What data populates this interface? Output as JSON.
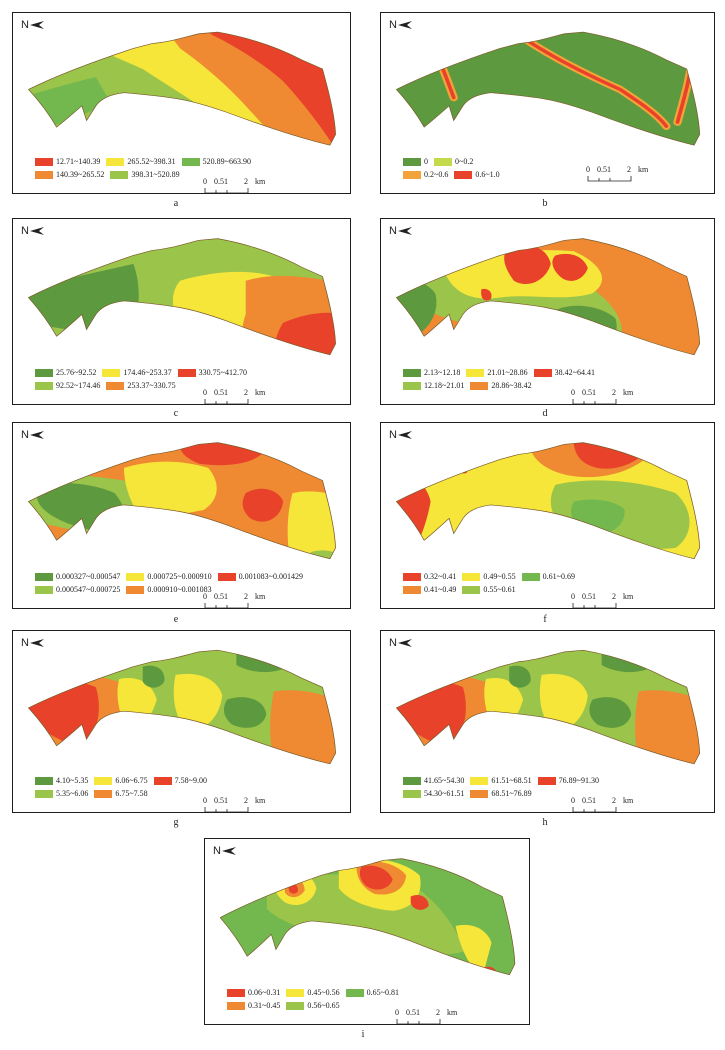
{
  "palette": {
    "dark_green": "#5d9a3f",
    "light_green": "#9bc44a",
    "yellow": "#f6e63a",
    "orange": "#ef8a33",
    "red": "#e8432a"
  },
  "north_label": "N",
  "scale": {
    "ticks": [
      "0",
      "0.5",
      "1",
      "2"
    ],
    "unit": "km"
  },
  "panels": [
    {
      "id": "a",
      "caption": "a",
      "legend": [
        {
          "label": "12.71~140.39",
          "color": "#e8432a"
        },
        {
          "label": "265.52~398.31",
          "color": "#f6e63a"
        },
        {
          "label": "520.89~663.90",
          "color": "#72b84e"
        },
        {
          "label": "140.39~265.52",
          "color": "#ef8a33"
        },
        {
          "label": "398.31~520.89",
          "color": "#9bc44a"
        }
      ]
    },
    {
      "id": "b",
      "caption": "b",
      "legend": [
        {
          "label": "0",
          "color": "#5d9a3f"
        },
        {
          "label": "0~0.2",
          "color": "#c4da4a"
        },
        {
          "label": "0.2~0.6",
          "color": "#f2a33a"
        },
        {
          "label": "0.6~1.0",
          "color": "#e8432a"
        }
      ]
    },
    {
      "id": "c",
      "caption": "c",
      "legend": [
        {
          "label": "25.76~92.52",
          "color": "#5d9a3f"
        },
        {
          "label": "174.46~253.37",
          "color": "#f6e63a"
        },
        {
          "label": "330.75~412.70",
          "color": "#e8432a"
        },
        {
          "label": "92.52~174.46",
          "color": "#9bc44a"
        },
        {
          "label": "253.37~330.75",
          "color": "#ef8a33"
        }
      ]
    },
    {
      "id": "d",
      "caption": "d",
      "legend": [
        {
          "label": "2.13~12.18",
          "color": "#5d9a3f"
        },
        {
          "label": "21.01~28.86",
          "color": "#f6e63a"
        },
        {
          "label": "38.42~64.41",
          "color": "#e8432a"
        },
        {
          "label": "12.18~21.01",
          "color": "#9bc44a"
        },
        {
          "label": "28.86~38.42",
          "color": "#ef8a33"
        }
      ]
    },
    {
      "id": "e",
      "caption": "e",
      "legend": [
        {
          "label": "0.000327~0.000547",
          "color": "#5d9a3f"
        },
        {
          "label": "0.000725~0.000910",
          "color": "#f6e63a"
        },
        {
          "label": "0.001083~0.001429",
          "color": "#e8432a"
        },
        {
          "label": "0.000547~0.000725",
          "color": "#9bc44a"
        },
        {
          "label": "0.000910~0.001083",
          "color": "#ef8a33"
        }
      ]
    },
    {
      "id": "f",
      "caption": "f",
      "legend": [
        {
          "label": "0.32~0.41",
          "color": "#e8432a"
        },
        {
          "label": "0.49~0.55",
          "color": "#f6e63a"
        },
        {
          "label": "0.61~0.69",
          "color": "#72b84e"
        },
        {
          "label": "0.41~0.49",
          "color": "#ef8a33"
        },
        {
          "label": "0.55~0.61",
          "color": "#9bc44a"
        }
      ]
    },
    {
      "id": "g",
      "caption": "g",
      "legend": [
        {
          "label": "4.10~5.35",
          "color": "#5d9a3f"
        },
        {
          "label": "6.06~6.75",
          "color": "#f6e63a"
        },
        {
          "label": "7.58~9.00",
          "color": "#e8432a"
        },
        {
          "label": "5.35~6.06",
          "color": "#9bc44a"
        },
        {
          "label": "6.75~7.58",
          "color": "#ef8a33"
        }
      ]
    },
    {
      "id": "h",
      "caption": "h",
      "legend": [
        {
          "label": "41.65~54.30",
          "color": "#5d9a3f"
        },
        {
          "label": "61.51~68.51",
          "color": "#f6e63a"
        },
        {
          "label": "76.89~91.30",
          "color": "#e8432a"
        },
        {
          "label": "54.30~61.51",
          "color": "#9bc44a"
        },
        {
          "label": "68.51~76.89",
          "color": "#ef8a33"
        }
      ]
    },
    {
      "id": "i",
      "caption": "i",
      "legend": [
        {
          "label": "0.06~0.31",
          "color": "#e8432a"
        },
        {
          "label": "0.45~0.56",
          "color": "#f6e63a"
        },
        {
          "label": "0.65~0.81",
          "color": "#72b84e"
        },
        {
          "label": "0.31~0.45",
          "color": "#ef8a33"
        },
        {
          "label": "0.56~0.65",
          "color": "#9bc44a"
        }
      ]
    }
  ]
}
